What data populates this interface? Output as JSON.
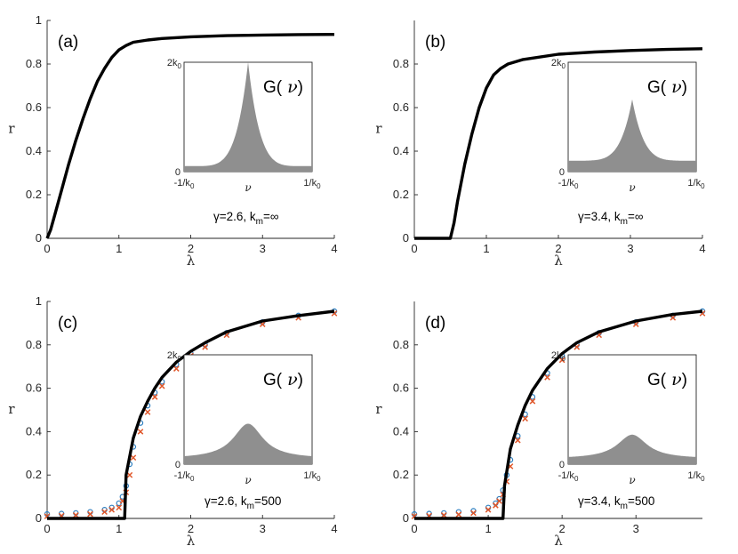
{
  "chart_data": [
    {
      "panel": "(a)",
      "type": "line",
      "xlabel": "λ",
      "ylabel": "r",
      "xlim": [
        0,
        4
      ],
      "ylim": [
        0,
        1
      ],
      "xticks": [
        0,
        1,
        2,
        3,
        4
      ],
      "yticks": [
        0,
        0.2,
        0.4,
        0.6,
        0.8,
        1
      ],
      "xtick_labels": [
        "0",
        "1",
        "2",
        "3",
        "4"
      ],
      "ytick_labels": [
        "0",
        "0.2",
        "0.4",
        "0.6",
        "0.8",
        "1"
      ],
      "annotation": {
        "prefix": "γ=2.6,  k",
        "sub": "m",
        "suffix": "=∞"
      },
      "series": [
        {
          "name": "theory",
          "color": "#000000",
          "x": [
            0,
            0.05,
            0.1,
            0.2,
            0.3,
            0.4,
            0.5,
            0.6,
            0.7,
            0.8,
            0.9,
            1.0,
            1.1,
            1.2,
            1.4,
            1.6,
            2.0,
            2.5,
            3.0,
            3.5,
            4.0
          ],
          "y": [
            0,
            0.04,
            0.1,
            0.22,
            0.34,
            0.45,
            0.55,
            0.64,
            0.72,
            0.78,
            0.83,
            0.865,
            0.885,
            0.9,
            0.91,
            0.917,
            0.925,
            0.93,
            0.933,
            0.935,
            0.936
          ]
        }
      ],
      "inset": {
        "title_prefix": "G(",
        "title_nu": "ν",
        "title_suffix": ")",
        "y_top": "2k",
        "y_top_sub": "0",
        "y_zero": "0",
        "x_left": "-1/k",
        "x_left_sub": "0",
        "x_mid": "ν",
        "x_right": "1/k",
        "x_right_sub": "0",
        "shape": "cusp",
        "peak": 1.0,
        "base": 0.05
      }
    },
    {
      "panel": "(b)",
      "type": "line",
      "xlabel": "λ",
      "ylabel": "r",
      "xlim": [
        0,
        4
      ],
      "ylim": [
        0,
        1
      ],
      "xticks": [
        0,
        1,
        2,
        3,
        4
      ],
      "yticks": [
        0,
        0.2,
        0.4,
        0.6,
        0.8
      ],
      "xtick_labels": [
        "0",
        "1",
        "2",
        "3",
        "4"
      ],
      "ytick_labels": [
        "0",
        "0.2",
        "0.4",
        "0.6",
        "0.8"
      ],
      "annotation": {
        "prefix": "γ=3.4,  k",
        "sub": "m",
        "suffix": "=∞"
      },
      "series": [
        {
          "name": "theory",
          "color": "#000000",
          "x": [
            0,
            0.5,
            0.55,
            0.6,
            0.7,
            0.8,
            0.9,
            1.0,
            1.1,
            1.2,
            1.3,
            1.5,
            2.0,
            2.5,
            3.0,
            3.5,
            4.0
          ],
          "y": [
            0,
            0,
            0.07,
            0.17,
            0.34,
            0.48,
            0.6,
            0.69,
            0.75,
            0.78,
            0.8,
            0.82,
            0.845,
            0.855,
            0.862,
            0.867,
            0.87
          ]
        }
      ],
      "inset": {
        "title_prefix": "G(",
        "title_nu": "ν",
        "title_suffix": ")",
        "y_top": "2k",
        "y_top_sub": "0",
        "y_zero": "0",
        "x_left": "-1/k",
        "x_left_sub": "0",
        "x_mid": "ν",
        "x_right": "1/k",
        "x_right_sub": "0",
        "shape": "cusp",
        "peak": 0.66,
        "base": 0.1
      }
    },
    {
      "panel": "(c)",
      "type": "line",
      "xlabel": "λ",
      "ylabel": "r",
      "xlim": [
        0,
        4
      ],
      "ylim": [
        0,
        1
      ],
      "xticks": [
        0,
        1,
        2,
        3,
        4
      ],
      "yticks": [
        0,
        0.2,
        0.4,
        0.6,
        0.8,
        1
      ],
      "xtick_labels": [
        "0",
        "1",
        "2",
        "3",
        "4"
      ],
      "ytick_labels": [
        "0",
        "0.2",
        "0.4",
        "0.6",
        "0.8",
        "1"
      ],
      "annotation": {
        "prefix": "γ=2.6,  k",
        "sub": "m",
        "suffix": "=500"
      },
      "series": [
        {
          "name": "theory",
          "color": "#000000",
          "x": [
            0,
            1.08,
            1.1,
            1.2,
            1.3,
            1.4,
            1.5,
            1.6,
            1.8,
            2.0,
            2.2,
            2.5,
            3.0,
            3.5,
            4.0
          ],
          "y": [
            0,
            0,
            0.2,
            0.37,
            0.47,
            0.54,
            0.6,
            0.65,
            0.72,
            0.77,
            0.81,
            0.86,
            0.91,
            0.935,
            0.955
          ]
        },
        {
          "name": "simulation-blue",
          "color": "#2e7fc0",
          "marker": "o",
          "x": [
            0,
            0.2,
            0.4,
            0.6,
            0.8,
            0.9,
            1.0,
            1.05,
            1.1,
            1.15,
            1.2,
            1.3,
            1.4,
            1.5,
            1.6,
            1.8,
            2.0,
            2.2,
            2.5,
            3.0,
            3.5,
            4.0
          ],
          "y": [
            0.02,
            0.022,
            0.025,
            0.03,
            0.04,
            0.05,
            0.07,
            0.1,
            0.15,
            0.25,
            0.33,
            0.44,
            0.52,
            0.58,
            0.63,
            0.71,
            0.76,
            0.8,
            0.855,
            0.905,
            0.935,
            0.955
          ]
        },
        {
          "name": "simulation-orange",
          "color": "#e0572a",
          "marker": "x",
          "x": [
            0,
            0.2,
            0.4,
            0.6,
            0.8,
            0.9,
            1.0,
            1.05,
            1.1,
            1.15,
            1.2,
            1.3,
            1.4,
            1.5,
            1.6,
            1.8,
            2.0,
            2.2,
            2.5,
            3.0,
            3.5,
            4.0
          ],
          "y": [
            0.01,
            0.012,
            0.015,
            0.02,
            0.03,
            0.04,
            0.05,
            0.08,
            0.12,
            0.2,
            0.28,
            0.4,
            0.49,
            0.56,
            0.61,
            0.69,
            0.75,
            0.79,
            0.845,
            0.895,
            0.925,
            0.945
          ]
        }
      ],
      "inset": {
        "title_prefix": "G(",
        "title_nu": "ν",
        "title_suffix": ")",
        "y_top": "2k",
        "y_top_sub": "0",
        "y_zero": "0",
        "x_left": "-1/k",
        "x_left_sub": "0",
        "x_mid": "ν",
        "x_right": "1/k",
        "x_right_sub": "0",
        "shape": "smooth",
        "peak": 0.37,
        "base": 0.05
      }
    },
    {
      "panel": "(d)",
      "type": "line",
      "xlabel": "λ",
      "ylabel": "r",
      "xlim": [
        0,
        3.9
      ],
      "ylim": [
        0,
        1
      ],
      "xticks": [
        0,
        1,
        2,
        3
      ],
      "yticks": [
        0,
        0.2,
        0.4,
        0.6,
        0.8
      ],
      "xtick_labels": [
        "0",
        "1",
        "2",
        "3"
      ],
      "ytick_labels": [
        "0",
        "0.2",
        "0.4",
        "0.6",
        "0.8"
      ],
      "annotation": {
        "prefix": "γ=3.4,  k",
        "sub": "m",
        "suffix": "=500"
      },
      "series": [
        {
          "name": "theory",
          "color": "#000000",
          "x": [
            0,
            1.2,
            1.22,
            1.3,
            1.4,
            1.5,
            1.6,
            1.8,
            2.0,
            2.2,
            2.5,
            3.0,
            3.5,
            3.9
          ],
          "y": [
            0,
            0,
            0.15,
            0.32,
            0.43,
            0.52,
            0.59,
            0.69,
            0.76,
            0.81,
            0.86,
            0.91,
            0.94,
            0.955
          ]
        },
        {
          "name": "simulation-blue",
          "color": "#2e7fc0",
          "marker": "o",
          "x": [
            0,
            0.2,
            0.4,
            0.6,
            0.8,
            1.0,
            1.1,
            1.15,
            1.2,
            1.25,
            1.3,
            1.4,
            1.5,
            1.6,
            1.8,
            2.0,
            2.2,
            2.5,
            3.0,
            3.5,
            3.9
          ],
          "y": [
            0.02,
            0.022,
            0.025,
            0.03,
            0.035,
            0.05,
            0.07,
            0.09,
            0.13,
            0.2,
            0.27,
            0.38,
            0.48,
            0.56,
            0.67,
            0.75,
            0.8,
            0.855,
            0.905,
            0.935,
            0.955
          ]
        },
        {
          "name": "simulation-orange",
          "color": "#e0572a",
          "marker": "x",
          "x": [
            0,
            0.2,
            0.4,
            0.6,
            0.8,
            1.0,
            1.1,
            1.15,
            1.2,
            1.25,
            1.3,
            1.4,
            1.5,
            1.6,
            1.8,
            2.0,
            2.2,
            2.5,
            3.0,
            3.5,
            3.9
          ],
          "y": [
            0.01,
            0.012,
            0.015,
            0.018,
            0.025,
            0.04,
            0.06,
            0.08,
            0.11,
            0.17,
            0.24,
            0.36,
            0.46,
            0.54,
            0.65,
            0.73,
            0.79,
            0.845,
            0.895,
            0.925,
            0.945
          ]
        }
      ],
      "inset": {
        "title_prefix": "G(",
        "title_nu": "ν",
        "title_suffix": ")",
        "y_top": "2k",
        "y_top_sub": "0",
        "y_zero": "0",
        "x_left": "-1/k",
        "x_left_sub": "0",
        "x_mid": "ν",
        "x_right": "1/k",
        "x_right_sub": "0",
        "shape": "smooth",
        "peak": 0.27,
        "base": 0.05
      }
    }
  ]
}
